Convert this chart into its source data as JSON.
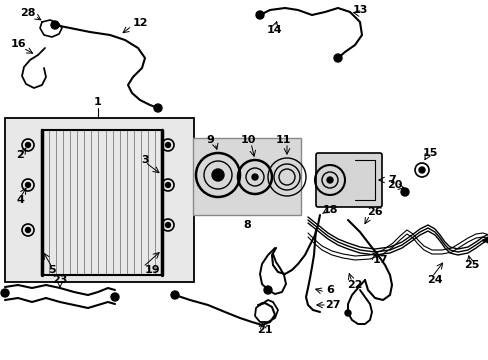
{
  "bg_color": "#ffffff",
  "line_color": "#000000",
  "label_color": "#000000",
  "box1_bg": "#e8e8e8",
  "box2_bg": "#d8d8d8",
  "figsize": [
    4.89,
    3.6
  ],
  "dpi": 100
}
